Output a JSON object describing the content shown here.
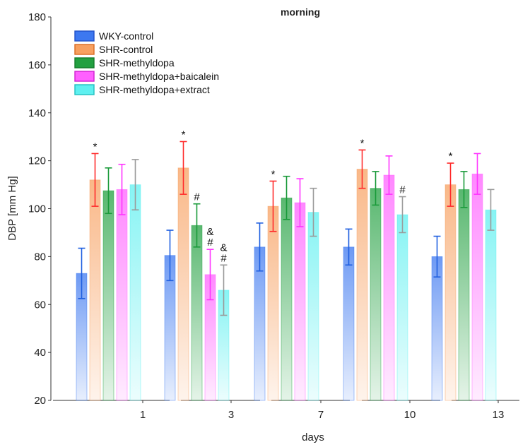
{
  "chart_data": {
    "type": "bar",
    "title": "morning",
    "xlabel": "days",
    "ylabel": "DBP [mm Hg]",
    "ylim": [
      20,
      180
    ],
    "yticks": [
      20,
      40,
      60,
      80,
      100,
      120,
      140,
      160,
      180
    ],
    "categories": [
      "1",
      "3",
      "7",
      "10",
      "13"
    ],
    "series": [
      {
        "name": "WKY-control",
        "color": "#1f5fe0",
        "values": [
          73,
          80.5,
          84,
          84,
          80
        ],
        "errors": [
          10.5,
          10.5,
          10,
          7.5,
          8.5
        ],
        "annotations": [
          [],
          [],
          [],
          [],
          []
        ]
      },
      {
        "name": "SHR-control",
        "color": "#ff2a2a",
        "values": [
          112,
          117,
          101,
          116.5,
          110
        ],
        "errors": [
          11,
          11,
          10.5,
          8,
          9
        ],
        "annotations": [
          [
            "*"
          ],
          [
            "*"
          ],
          [
            "*"
          ],
          [
            "*"
          ],
          [
            "*"
          ]
        ]
      },
      {
        "name": "SHR-methyldopa",
        "color": "#1a9a3a",
        "values": [
          107.5,
          93,
          104.5,
          108.5,
          108
        ],
        "errors": [
          9.5,
          9,
          9,
          7,
          7.5
        ],
        "annotations": [
          [],
          [
            "#"
          ],
          [],
          [],
          []
        ]
      },
      {
        "name": "SHR-methyldopa+baicalein",
        "color": "#ff33ff",
        "values": [
          108,
          72.5,
          102.5,
          114,
          114.5
        ],
        "errors": [
          10.5,
          10.5,
          10,
          8,
          8.5
        ],
        "annotations": [
          [],
          [
            "&",
            "#"
          ],
          [],
          [],
          []
        ]
      },
      {
        "name": "SHR-methyldopa+extract",
        "color": "#9a9a9a",
        "values": [
          110,
          66,
          98.5,
          97.5,
          99.5
        ],
        "errors": [
          10.5,
          10.5,
          10,
          7.5,
          8.5
        ],
        "annotations": [
          [],
          [
            "&",
            "#"
          ],
          [],
          [
            "#"
          ],
          []
        ]
      }
    ],
    "legend": {
      "placement": "top-left",
      "entries": [
        {
          "label": "WKY-control",
          "fill": "#3d78f0",
          "stroke": "#1f4fc8"
        },
        {
          "label": "SHR-control",
          "fill": "#f7a060",
          "stroke": "#d96a20"
        },
        {
          "label": "SHR-methyldopa",
          "fill": "#22a040",
          "stroke": "#137a2a"
        },
        {
          "label": "SHR-methyldopa+baicalein",
          "fill": "#ff60ff",
          "stroke": "#d020d0"
        },
        {
          "label": "SHR-methyldopa+extract",
          "fill": "#5ef0f0",
          "stroke": "#20c0c0"
        }
      ]
    },
    "bar_fills": [
      "#3d78f0",
      "#f7a060",
      "#22a040",
      "#ff60ff",
      "#5ef0f0"
    ]
  }
}
